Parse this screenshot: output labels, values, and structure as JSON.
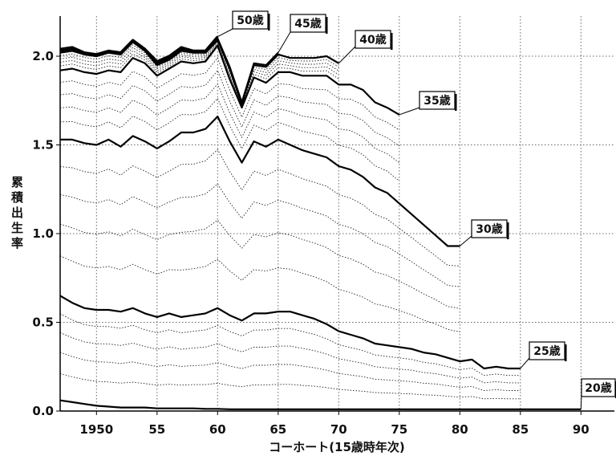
{
  "chart_data": {
    "type": "line",
    "xlabel": "コーホート(15歳時年次)",
    "ylabel": "累積出生率",
    "xlim": [
      1947,
      1994
    ],
    "ylim": [
      0,
      2.2
    ],
    "x_ticks": [
      {
        "value": 1950,
        "label": "1950"
      },
      {
        "value": 1955,
        "label": "55"
      },
      {
        "value": 1960,
        "label": "60"
      },
      {
        "value": 1965,
        "label": "65"
      },
      {
        "value": 1970,
        "label": "70"
      },
      {
        "value": 1975,
        "label": "75"
      },
      {
        "value": 1980,
        "label": "80"
      },
      {
        "value": 1985,
        "label": "85"
      },
      {
        "value": 1990,
        "label": "90"
      }
    ],
    "y_ticks": [
      {
        "value": 0.0,
        "label": "0.0"
      },
      {
        "value": 0.5,
        "label": "0.5"
      },
      {
        "value": 1.0,
        "label": "1.0"
      },
      {
        "value": 1.5,
        "label": "1.5"
      },
      {
        "value": 2.0,
        "label": "2.0"
      }
    ],
    "grid": "dotted",
    "series": [
      {
        "name": "20歳",
        "style": "solid",
        "x": [
          1947,
          1948,
          1949,
          1950,
          1951,
          1952,
          1953,
          1954,
          1955,
          1956,
          1957,
          1958,
          1959,
          1960,
          1961,
          1962,
          1963,
          1964,
          1965,
          1966,
          1967,
          1968,
          1969,
          1970,
          1971,
          1972,
          1973,
          1974,
          1975,
          1976,
          1977,
          1978,
          1979,
          1980,
          1981,
          1982,
          1983,
          1984,
          1985,
          1986,
          1987,
          1988,
          1989,
          1990
        ],
        "y": [
          0.06,
          0.05,
          0.04,
          0.03,
          0.025,
          0.02,
          0.02,
          0.02,
          0.015,
          0.015,
          0.015,
          0.015,
          0.012,
          0.012,
          0.01,
          0.01,
          0.01,
          0.01,
          0.01,
          0.01,
          0.01,
          0.01,
          0.01,
          0.01,
          0.01,
          0.01,
          0.01,
          0.01,
          0.01,
          0.01,
          0.01,
          0.01,
          0.01,
          0.01,
          0.01,
          0.01,
          0.01,
          0.01,
          0.01,
          0.01,
          0.01,
          0.01,
          0.01,
          0.01
        ]
      },
      {
        "name": "25歳",
        "style": "solid",
        "x": [
          1947,
          1948,
          1949,
          1950,
          1951,
          1952,
          1953,
          1954,
          1955,
          1956,
          1957,
          1958,
          1959,
          1960,
          1961,
          1962,
          1963,
          1964,
          1965,
          1966,
          1967,
          1968,
          1969,
          1970,
          1971,
          1972,
          1973,
          1974,
          1975,
          1976,
          1977,
          1978,
          1979,
          1980,
          1981,
          1982,
          1983,
          1984,
          1985
        ],
        "y": [
          0.65,
          0.61,
          0.58,
          0.57,
          0.57,
          0.56,
          0.58,
          0.55,
          0.53,
          0.55,
          0.53,
          0.54,
          0.55,
          0.58,
          0.54,
          0.51,
          0.55,
          0.55,
          0.56,
          0.56,
          0.54,
          0.52,
          0.49,
          0.45,
          0.43,
          0.41,
          0.38,
          0.37,
          0.36,
          0.35,
          0.33,
          0.32,
          0.3,
          0.28,
          0.29,
          0.24,
          0.25,
          0.24,
          0.24
        ]
      },
      {
        "name": "30歳",
        "style": "solid",
        "x": [
          1947,
          1948,
          1949,
          1950,
          1951,
          1952,
          1953,
          1954,
          1955,
          1956,
          1957,
          1958,
          1959,
          1960,
          1961,
          1962,
          1963,
          1964,
          1965,
          1966,
          1967,
          1968,
          1969,
          1970,
          1971,
          1972,
          1973,
          1974,
          1975,
          1976,
          1977,
          1978,
          1979,
          1980
        ],
        "y": [
          1.53,
          1.53,
          1.51,
          1.5,
          1.53,
          1.49,
          1.55,
          1.52,
          1.48,
          1.52,
          1.57,
          1.57,
          1.59,
          1.66,
          1.52,
          1.4,
          1.52,
          1.49,
          1.53,
          1.5,
          1.47,
          1.45,
          1.43,
          1.38,
          1.36,
          1.32,
          1.26,
          1.23,
          1.17,
          1.11,
          1.05,
          0.99,
          0.93,
          0.93
        ]
      },
      {
        "name": "35歳",
        "style": "solid",
        "x": [
          1947,
          1948,
          1949,
          1950,
          1951,
          1952,
          1953,
          1954,
          1955,
          1956,
          1957,
          1958,
          1959,
          1960,
          1961,
          1962,
          1963,
          1964,
          1965,
          1966,
          1967,
          1968,
          1969,
          1970,
          1971,
          1972,
          1973,
          1974,
          1975
        ],
        "y": [
          1.92,
          1.93,
          1.91,
          1.9,
          1.92,
          1.91,
          1.99,
          1.96,
          1.89,
          1.93,
          1.97,
          1.96,
          1.97,
          2.06,
          1.87,
          1.71,
          1.88,
          1.85,
          1.91,
          1.91,
          1.89,
          1.89,
          1.89,
          1.84,
          1.84,
          1.81,
          1.74,
          1.71,
          1.67
        ]
      },
      {
        "name": "40歳",
        "style": "solid",
        "x": [
          1947,
          1948,
          1949,
          1950,
          1951,
          1952,
          1953,
          1954,
          1955,
          1956,
          1957,
          1958,
          1959,
          1960,
          1961,
          1962,
          1963,
          1964,
          1965,
          1966,
          1967,
          1968,
          1969,
          1970
        ],
        "y": [
          2.02,
          2.03,
          2.01,
          2.0,
          2.02,
          2.01,
          2.08,
          2.03,
          1.95,
          1.98,
          2.03,
          2.02,
          2.02,
          2.09,
          1.93,
          1.73,
          1.95,
          1.94,
          2.01,
          1.99,
          1.99,
          1.99,
          2.0,
          1.96
        ]
      },
      {
        "name": "45歳",
        "style": "solid",
        "x": [
          1947,
          1948,
          1949,
          1950,
          1951,
          1952,
          1953,
          1954,
          1955,
          1956,
          1957,
          1958,
          1959,
          1960,
          1961,
          1962,
          1963,
          1964,
          1965
        ],
        "y": [
          2.03,
          2.04,
          2.01,
          2.0,
          2.02,
          2.01,
          2.08,
          2.03,
          1.96,
          1.99,
          2.04,
          2.02,
          2.03,
          2.1,
          1.94,
          1.74,
          1.96,
          1.95,
          2.02
        ]
      },
      {
        "name": "50歳",
        "style": "solid",
        "x": [
          1947,
          1948,
          1949,
          1950,
          1951,
          1952,
          1953,
          1954,
          1955,
          1956,
          1957,
          1958,
          1959,
          1960
        ],
        "y": [
          2.04,
          2.05,
          2.02,
          2.01,
          2.03,
          2.02,
          2.09,
          2.04,
          1.97,
          2.0,
          2.05,
          2.03,
          2.03,
          2.11
        ]
      }
    ],
    "annotations": [
      {
        "text": "50歳",
        "target_series": "50歳"
      },
      {
        "text": "45歳",
        "target_series": "45歳"
      },
      {
        "text": "40歳",
        "target_series": "40歳"
      },
      {
        "text": "35歳",
        "target_series": "35歳"
      },
      {
        "text": "30歳",
        "target_series": "30歳"
      },
      {
        "text": "25歳",
        "target_series": "25歳"
      },
      {
        "text": "20歳",
        "target_series": "20歳"
      }
    ]
  }
}
